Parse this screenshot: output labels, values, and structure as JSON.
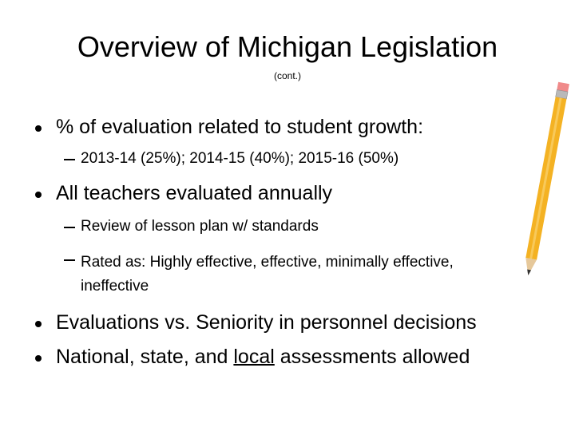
{
  "slide": {
    "title": "Overview of Michigan Legislation",
    "subtitle": "(cont.)",
    "bullets": [
      {
        "text": "% of evaluation related to student growth:",
        "sub": [
          "2013-14 (25%); 2014-15 (40%); 2015-16 (50%)"
        ]
      },
      {
        "text": "All teachers evaluated annually",
        "sub": [
          "Review of lesson plan w/ standards",
          "Rated as: Highly effective, effective, minimally effective, ineffective"
        ]
      },
      {
        "text": "Evaluations vs. Seniority in personnel decisions"
      },
      {
        "parts": [
          "National, state, and ",
          "local",
          " assessments allowed"
        ]
      }
    ]
  }
}
